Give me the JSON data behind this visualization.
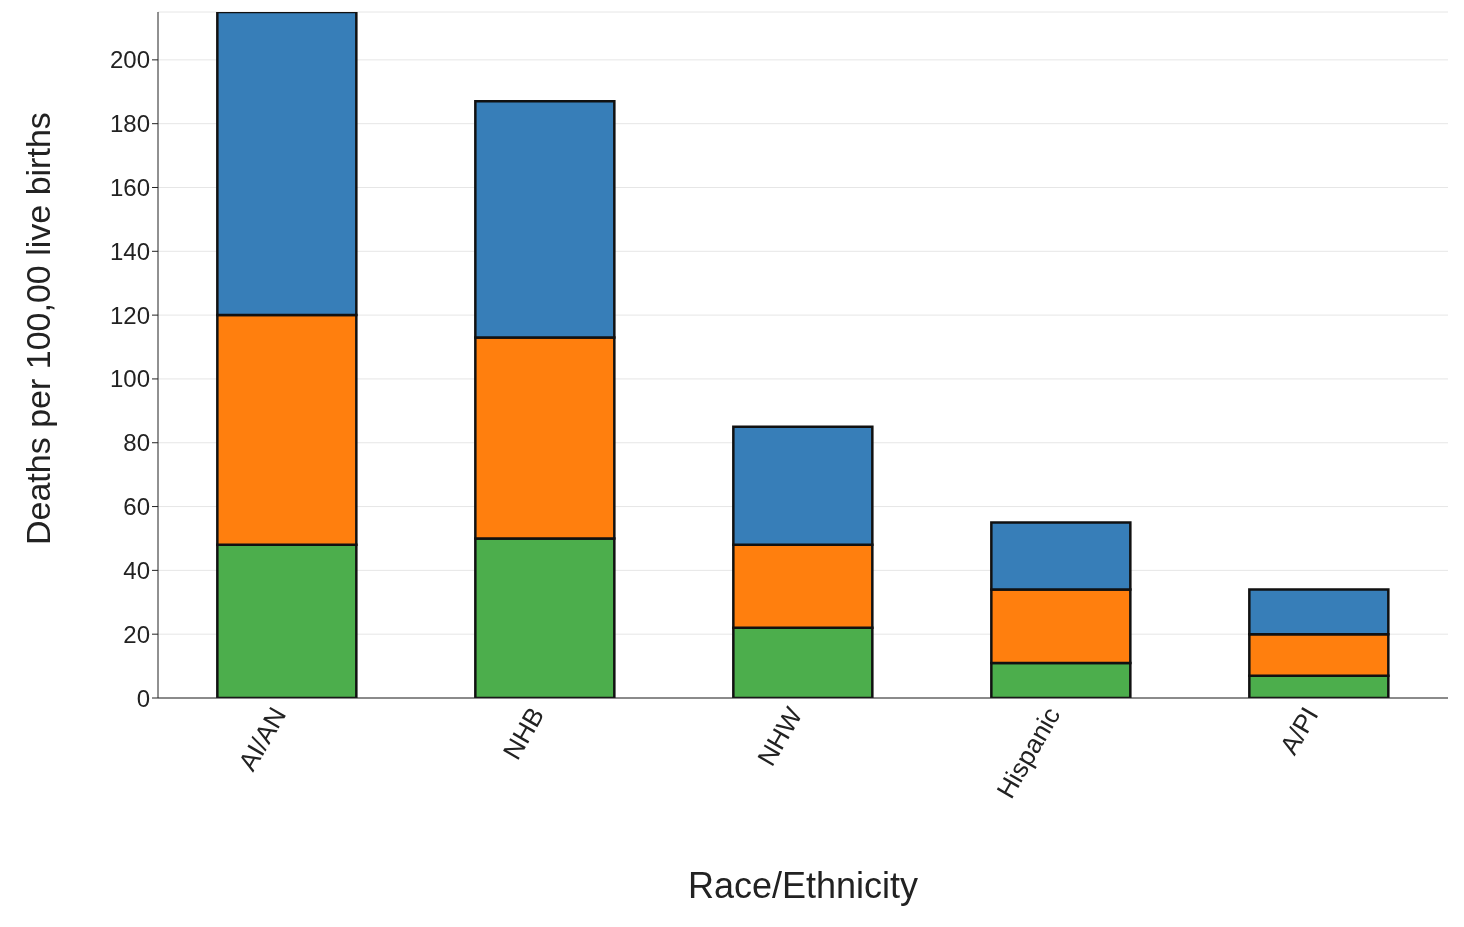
{
  "chart_data": {
    "type": "bar",
    "stacked": true,
    "xlabel": "Race/Ethnicity",
    "ylabel": "Deaths per 100,00 live births",
    "categories": [
      "AI/AN",
      "NHB",
      "NHW",
      "Hispanic",
      "A/PI"
    ],
    "series": [
      {
        "color": "#4cae4c",
        "values": [
          48,
          50,
          22,
          11,
          7
        ]
      },
      {
        "color": "#ff7f0e",
        "values": [
          72,
          63,
          26,
          23,
          13
        ]
      },
      {
        "color": "#377eb8",
        "values": [
          95,
          74,
          37,
          21,
          14
        ]
      }
    ],
    "ylim": [
      0,
      215
    ],
    "yticks": [
      0,
      20,
      40,
      60,
      80,
      100,
      120,
      140,
      160,
      180,
      200
    ],
    "grid": "y",
    "legend": false
  }
}
